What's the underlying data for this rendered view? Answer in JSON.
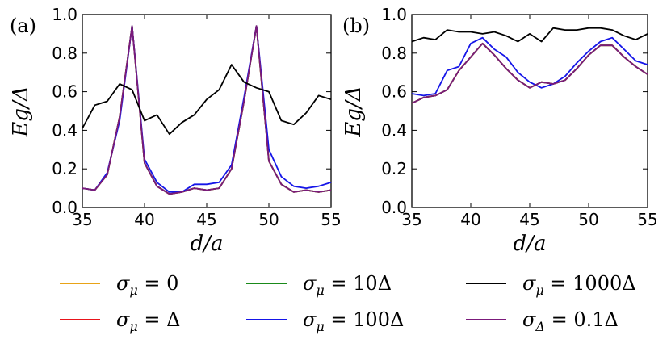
{
  "chart_data": [
    {
      "type": "line",
      "panel_label": "(a)",
      "xlabel": "d/a",
      "ylabel": "Eg/Δ",
      "xlim": [
        35,
        55
      ],
      "ylim": [
        0.0,
        1.0
      ],
      "xticks": [
        "35",
        "40",
        "45",
        "50",
        "55"
      ],
      "yticks": [
        "0.0",
        "0.2",
        "0.4",
        "0.6",
        "0.8",
        "1.0"
      ],
      "x": [
        35,
        36,
        37,
        38,
        39,
        40,
        41,
        42,
        43,
        44,
        45,
        46,
        47,
        48,
        49,
        50,
        51,
        52,
        53,
        54,
        55
      ],
      "series": [
        {
          "name": "σμ = 0",
          "color": "#e8a317",
          "values": [
            0.1,
            0.09,
            0.17,
            0.47,
            0.94,
            0.23,
            0.11,
            0.07,
            0.08,
            0.1,
            0.09,
            0.1,
            0.2,
            0.55,
            0.94,
            0.24,
            0.12,
            0.08,
            0.09,
            0.08,
            0.09
          ]
        },
        {
          "name": "σμ = Δ",
          "color": "#e8141b",
          "values": [
            0.1,
            0.09,
            0.17,
            0.47,
            0.94,
            0.23,
            0.11,
            0.07,
            0.08,
            0.1,
            0.09,
            0.1,
            0.2,
            0.55,
            0.94,
            0.24,
            0.12,
            0.08,
            0.09,
            0.08,
            0.09
          ]
        },
        {
          "name": "σμ = 10Δ",
          "color": "#1a8a1a",
          "values": [
            0.1,
            0.09,
            0.17,
            0.47,
            0.94,
            0.23,
            0.11,
            0.07,
            0.08,
            0.1,
            0.09,
            0.1,
            0.2,
            0.55,
            0.94,
            0.24,
            0.12,
            0.08,
            0.09,
            0.08,
            0.09
          ]
        },
        {
          "name": "σμ = 100Δ",
          "color": "#1515e8",
          "values": [
            0.1,
            0.09,
            0.18,
            0.45,
            0.94,
            0.25,
            0.13,
            0.08,
            0.08,
            0.12,
            0.12,
            0.13,
            0.22,
            0.57,
            0.94,
            0.3,
            0.16,
            0.11,
            0.1,
            0.11,
            0.13
          ]
        },
        {
          "name": "σΔ = 0.1Δ",
          "color": "#7b1a7b",
          "values": [
            0.1,
            0.09,
            0.17,
            0.47,
            0.94,
            0.23,
            0.11,
            0.07,
            0.08,
            0.1,
            0.09,
            0.1,
            0.2,
            0.55,
            0.94,
            0.24,
            0.12,
            0.08,
            0.09,
            0.08,
            0.09
          ]
        },
        {
          "name": "σμ = 1000Δ",
          "color": "#000000",
          "values": [
            0.41,
            0.53,
            0.55,
            0.64,
            0.61,
            0.45,
            0.48,
            0.38,
            0.44,
            0.48,
            0.56,
            0.61,
            0.74,
            0.65,
            0.62,
            0.6,
            0.45,
            0.43,
            0.49,
            0.58,
            0.56
          ]
        }
      ]
    },
    {
      "type": "line",
      "panel_label": "(b)",
      "xlabel": "d/a",
      "ylabel": "Eg/Δ",
      "xlim": [
        35,
        55
      ],
      "ylim": [
        0.0,
        1.0
      ],
      "xticks": [
        "35",
        "40",
        "45",
        "50",
        "55"
      ],
      "yticks": [
        "0.0",
        "0.2",
        "0.4",
        "0.6",
        "0.8",
        "1.0"
      ],
      "x": [
        35,
        36,
        37,
        38,
        39,
        40,
        41,
        42,
        43,
        44,
        45,
        46,
        47,
        48,
        49,
        50,
        51,
        52,
        53,
        54,
        55
      ],
      "series": [
        {
          "name": "σμ = 0",
          "color": "#e8a317",
          "values": [
            0.54,
            0.57,
            0.58,
            0.61,
            0.71,
            0.78,
            0.85,
            0.79,
            0.72,
            0.66,
            0.62,
            0.65,
            0.64,
            0.66,
            0.72,
            0.79,
            0.84,
            0.84,
            0.78,
            0.73,
            0.69
          ]
        },
        {
          "name": "σμ = Δ",
          "color": "#e8141b",
          "values": [
            0.54,
            0.57,
            0.58,
            0.61,
            0.71,
            0.78,
            0.85,
            0.79,
            0.72,
            0.66,
            0.62,
            0.65,
            0.64,
            0.66,
            0.72,
            0.79,
            0.84,
            0.84,
            0.78,
            0.73,
            0.69
          ]
        },
        {
          "name": "σμ = 10Δ",
          "color": "#1a8a1a",
          "values": [
            0.54,
            0.57,
            0.58,
            0.61,
            0.71,
            0.78,
            0.85,
            0.79,
            0.72,
            0.66,
            0.62,
            0.65,
            0.64,
            0.66,
            0.72,
            0.79,
            0.84,
            0.84,
            0.78,
            0.73,
            0.69
          ]
        },
        {
          "name": "σμ = 100Δ",
          "color": "#1515e8",
          "values": [
            0.59,
            0.58,
            0.59,
            0.71,
            0.73,
            0.85,
            0.88,
            0.82,
            0.78,
            0.7,
            0.65,
            0.62,
            0.64,
            0.68,
            0.75,
            0.81,
            0.86,
            0.88,
            0.82,
            0.76,
            0.74
          ]
        },
        {
          "name": "σΔ = 0.1Δ",
          "color": "#7b1a7b",
          "values": [
            0.54,
            0.57,
            0.58,
            0.61,
            0.71,
            0.78,
            0.85,
            0.79,
            0.72,
            0.66,
            0.62,
            0.65,
            0.64,
            0.66,
            0.72,
            0.79,
            0.84,
            0.84,
            0.78,
            0.73,
            0.69
          ]
        },
        {
          "name": "σμ = 1000Δ",
          "color": "#000000",
          "values": [
            0.86,
            0.88,
            0.87,
            0.92,
            0.91,
            0.91,
            0.9,
            0.91,
            0.89,
            0.86,
            0.9,
            0.86,
            0.93,
            0.92,
            0.92,
            0.93,
            0.93,
            0.92,
            0.89,
            0.87,
            0.9
          ]
        }
      ]
    }
  ],
  "legend": {
    "items": [
      {
        "label_main": "σ",
        "label_sub": "μ",
        "label_rest": " = 0",
        "color": "#e8a317"
      },
      {
        "label_main": "σ",
        "label_sub": "μ",
        "label_rest": " = Δ",
        "color": "#e8141b"
      },
      {
        "label_main": "σ",
        "label_sub": "μ",
        "label_rest": " = 10Δ",
        "color": "#1a8a1a"
      },
      {
        "label_main": "σ",
        "label_sub": "μ",
        "label_rest": " = 100Δ",
        "color": "#1515e8"
      },
      {
        "label_main": "σ",
        "label_sub": "μ",
        "label_rest": " = 1000Δ",
        "color": "#000000"
      },
      {
        "label_main": "σ",
        "label_sub": "Δ",
        "label_rest": " = 0.1Δ",
        "color": "#7b1a7b"
      }
    ]
  }
}
